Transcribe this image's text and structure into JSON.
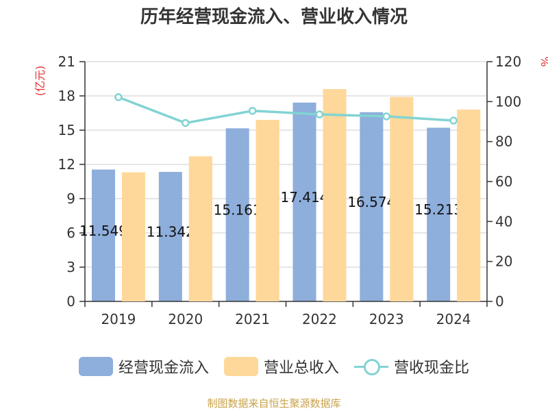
{
  "chart_data": {
    "type": "bar",
    "title": "历年经营现金流入、营业收入情况",
    "categories": [
      "2019",
      "2020",
      "2021",
      "2022",
      "2023",
      "2024"
    ],
    "ylabel_left": "(亿元)",
    "ylabel_right": "%",
    "ylim_left": [
      0,
      21
    ],
    "yticks_left": [
      "0",
      "3",
      "6",
      "9",
      "12",
      "15",
      "18",
      "21"
    ],
    "ylim_right": [
      0,
      120
    ],
    "yticks_right": [
      "0",
      "20",
      "40",
      "60",
      "80",
      "100",
      "120"
    ],
    "grid": true,
    "legend_position": "bottom",
    "series": [
      {
        "name": "经营现金流入",
        "type": "bar",
        "axis": "left",
        "color": "#8eaedb",
        "values": [
          11.549,
          11.342,
          15.161,
          17.414,
          16.574,
          15.213
        ],
        "labels": [
          "11.549",
          "11.342",
          "15.161",
          "17.414",
          "16.574",
          "15.213"
        ]
      },
      {
        "name": "营业总收入",
        "type": "bar",
        "axis": "left",
        "color": "#fed89a",
        "values": [
          11.3,
          12.7,
          15.9,
          18.6,
          17.9,
          16.8
        ]
      },
      {
        "name": "营收现金比",
        "type": "line",
        "axis": "right",
        "color": "#82d3d3",
        "values": [
          102.2,
          89.3,
          95.4,
          93.6,
          92.6,
          90.5
        ]
      }
    ]
  },
  "source": "制图数据来自恒生聚源数据库"
}
